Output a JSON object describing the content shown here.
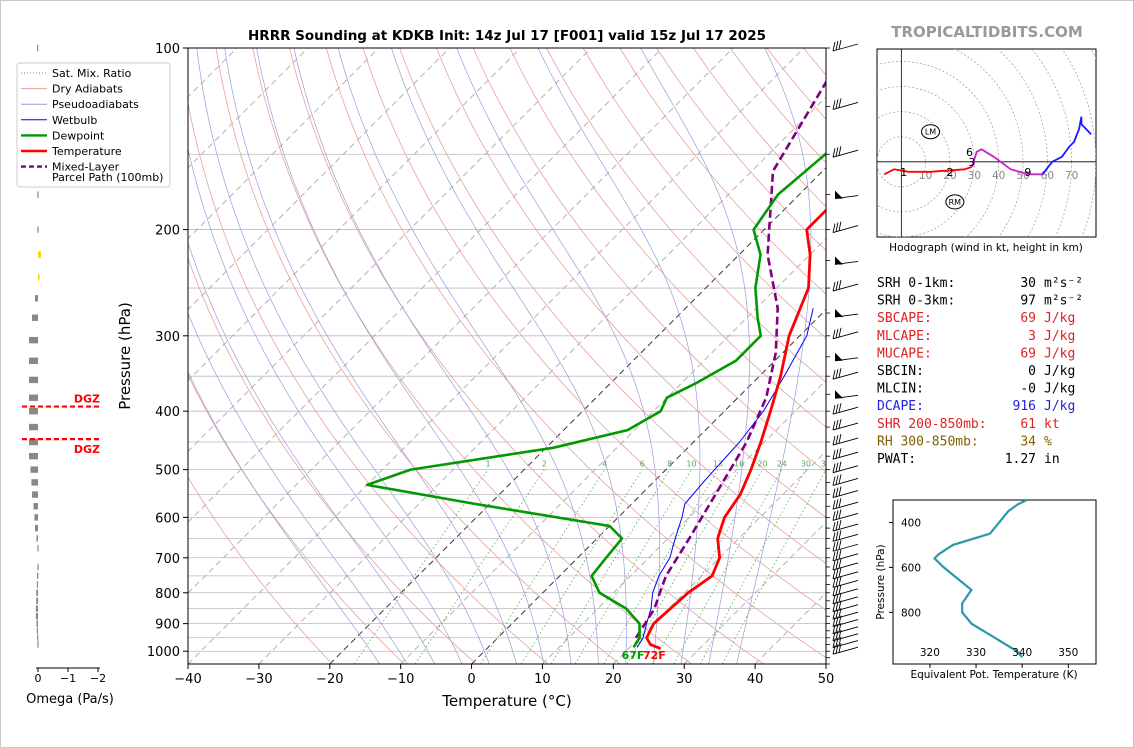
{
  "header": {
    "title": "HRRR Sounding at KDKB Init: 14z Jul 17 [F001] valid 15z Jul 17 2025",
    "brand": "TROPICALTIDBITS.COM"
  },
  "colors": {
    "temperature": "#ff0000",
    "dewpoint": "#009900",
    "wetbulb": "#0000ff",
    "parcel": "#800080",
    "dry_adiabat": "#e8a0a0",
    "moist_adiabat": "#9a9ae0",
    "mixing_ratio": "#58a858",
    "isotherm": "#808080",
    "theta_e": "#2e98a8",
    "red_text": "#dd2222",
    "blue_text": "#2222dd",
    "brown_text": "#806000"
  },
  "legend": {
    "items": [
      {
        "label": "Sat. Mix. Ratio",
        "color": "#58a858",
        "style": "dotted"
      },
      {
        "label": "Dry Adiabats",
        "color": "#e8a0a0",
        "style": "solid"
      },
      {
        "label": "Pseudoadiabats",
        "color": "#9a9ae0",
        "style": "solid"
      },
      {
        "label": "Wetbulb",
        "color": "#0000ff",
        "style": "solid"
      },
      {
        "label": "Dewpoint",
        "color": "#009900",
        "style": "thick"
      },
      {
        "label": "Temperature",
        "color": "#ff0000",
        "style": "thick"
      },
      {
        "label": "Mixed-Layer",
        "color": "#800080",
        "style": "dashed"
      }
    ],
    "parcel_sublabel": "Parcel Path (100mb)"
  },
  "omega": {
    "xlabel": "Omega (Pa/s)",
    "ticks": [
      "0",
      "−1",
      "−2"
    ],
    "dgz_label": "DGZ",
    "dgz_pressures": [
      393,
      445
    ],
    "bars": [
      {
        "p": 100,
        "v": 0.03
      },
      {
        "p": 150,
        "v": 0.02
      },
      {
        "p": 175,
        "v": 0.02
      },
      {
        "p": 200,
        "v": 0.02
      },
      {
        "p": 220,
        "v": -0.1
      },
      {
        "p": 240,
        "v": -0.05
      },
      {
        "p": 260,
        "v": 0.1
      },
      {
        "p": 280,
        "v": 0.2
      },
      {
        "p": 305,
        "v": 0.3
      },
      {
        "p": 330,
        "v": 0.3
      },
      {
        "p": 355,
        "v": 0.3
      },
      {
        "p": 380,
        "v": 0.3
      },
      {
        "p": 400,
        "v": 0.3
      },
      {
        "p": 425,
        "v": 0.3
      },
      {
        "p": 450,
        "v": 0.3
      },
      {
        "p": 475,
        "v": 0.3
      },
      {
        "p": 500,
        "v": 0.25
      },
      {
        "p": 525,
        "v": 0.22
      },
      {
        "p": 550,
        "v": 0.2
      },
      {
        "p": 575,
        "v": 0.15
      },
      {
        "p": 600,
        "v": 0.12
      },
      {
        "p": 625,
        "v": 0.1
      },
      {
        "p": 650,
        "v": 0.05
      },
      {
        "p": 675,
        "v": 0.02
      },
      {
        "p": 725,
        "v": 0.02
      },
      {
        "p": 750,
        "v": 0.03
      },
      {
        "p": 775,
        "v": 0.04
      },
      {
        "p": 800,
        "v": 0.06
      },
      {
        "p": 825,
        "v": 0.06
      },
      {
        "p": 850,
        "v": 0.07
      },
      {
        "p": 875,
        "v": 0.07
      },
      {
        "p": 900,
        "v": 0.05
      },
      {
        "p": 925,
        "v": 0.04
      },
      {
        "p": 950,
        "v": 0.03
      },
      {
        "p": 975,
        "v": 0.02
      }
    ]
  },
  "skewt": {
    "ylabel": "Pressure (hPa)",
    "xlabel": "Temperature (°C)",
    "x_ticks": [
      "−40",
      "−30",
      "−20",
      "−10",
      "0",
      "10",
      "20",
      "30",
      "40",
      "50"
    ],
    "y_ticks": [
      "100",
      "200",
      "300",
      "400",
      "500",
      "600",
      "700",
      "800",
      "900",
      "1000"
    ],
    "sfc_dewpoint_label": "67F",
    "sfc_temp_label": "72F",
    "mixing_ratio_labels": [
      "1",
      "2",
      "4",
      "6",
      "8",
      "10",
      "13",
      "16",
      "20",
      "24",
      "30",
      "36"
    ]
  },
  "chart_data": [
    {
      "type": "line",
      "title": "HRRR Sounding at KDKB Init: 14z Jul 17 [F001] valid 15z Jul 17 2025",
      "xlabel": "Temperature (°C)",
      "ylabel": "Pressure (hPa)",
      "xlim": [
        -40,
        50
      ],
      "ylim": [
        1050,
        100
      ],
      "yscale": "log",
      "skew": "45 degrees",
      "grid": true,
      "legend_position": "upper-left",
      "series": [
        {
          "name": "Temperature",
          "x": [
            24.5,
            22.5,
            21.0,
            20.0,
            20.5,
            21.5,
            20.0,
            17.0,
            15.0,
            14.0,
            12.0,
            9.5,
            6.5,
            3.0,
            -1.5,
            -5.5,
            -10.0,
            -14.0,
            -14.0,
            -13.5,
            -13.5,
            -13.5,
            -13.5,
            -1.5
          ],
          "y": [
            990,
            975,
            950,
            900,
            800,
            750,
            700,
            650,
            600,
            550,
            500,
            450,
            400,
            350,
            300,
            250,
            220,
            200,
            180,
            160,
            140,
            120,
            115,
            100
          ]
        },
        {
          "name": "Dewpoint",
          "x": [
            20.5,
            20.0,
            18.0,
            14.0,
            8.0,
            4.5,
            4.0,
            3.5,
            0.0,
            -22.0,
            -40.0,
            -36.0,
            -19.0,
            -11.0,
            -9.0,
            -10.0,
            -8.0,
            -5.5,
            -5.5,
            -8.5,
            -13.0,
            -17.0,
            -21.5,
            -23.0,
            -22.0,
            -23.0
          ],
          "y": [
            985,
            950,
            900,
            850,
            800,
            750,
            700,
            650,
            620,
            570,
            530,
            500,
            460,
            430,
            400,
            380,
            360,
            330,
            300,
            280,
            250,
            220,
            200,
            175,
            150,
            100
          ]
        },
        {
          "name": "Wetbulb",
          "x": [
            21.0,
            20.5,
            19.0,
            17.5,
            15.5,
            14.0,
            13.0,
            11.0,
            9.0,
            7.5,
            7.0,
            6.5,
            5.5,
            3.5,
            1.0,
            -2.0
          ],
          "y": [
            985,
            950,
            900,
            850,
            800,
            750,
            700,
            650,
            600,
            570,
            520,
            450,
            400,
            350,
            300,
            270
          ]
        },
        {
          "name": "Mixed-Layer Parcel Path (100mb)",
          "x": [
            19.5,
            18.0,
            16.5,
            15.0,
            13.0,
            10.5,
            7.5,
            4.0,
            -1.0,
            -7.0,
            -16.0,
            -27.0,
            -34.0
          ],
          "y": [
            950,
            850,
            800,
            750,
            650,
            550,
            450,
            380,
            320,
            270,
            220,
            160,
            100
          ]
        }
      ]
    },
    {
      "type": "line",
      "title": "Hodograph (wind in kt, height in km)",
      "xlim": [
        -10,
        80
      ],
      "ylim": [
        -30,
        45
      ],
      "ring_labels": [
        "10",
        "20",
        "30",
        "40",
        "50",
        "60",
        "70"
      ],
      "series": [
        {
          "name": "0-3 km",
          "x": [
            -7,
            -3,
            3,
            12,
            26,
            29
          ],
          "y": [
            -5,
            -3,
            -4,
            -4,
            -3,
            -2
          ]
        },
        {
          "name": "3-6 km",
          "x": [
            29,
            30,
            31,
            33,
            38,
            45,
            52,
            58
          ],
          "y": [
            -2,
            1,
            4,
            5,
            2,
            -3,
            -5,
            -5
          ]
        },
        {
          "name": "6-9 km",
          "x": [
            58,
            62,
            66,
            69,
            71,
            73,
            74,
            74,
            78
          ],
          "y": [
            -5,
            0,
            2,
            6,
            8,
            13,
            18,
            15,
            11
          ]
        }
      ],
      "markers": [
        {
          "label": "1",
          "x": 1,
          "y": -4
        },
        {
          "label": "2",
          "x": 20,
          "y": -4
        },
        {
          "label": "3",
          "x": 29,
          "y": 0
        },
        {
          "label": "6",
          "x": 28,
          "y": 4
        },
        {
          "label": "9",
          "x": 52,
          "y": -4
        },
        {
          "label": "LM",
          "x": 12,
          "y": 12
        },
        {
          "label": "RM",
          "x": 22,
          "y": -16
        }
      ]
    },
    {
      "type": "line",
      "xlabel": "Equivalent Pot. Temperature (K)",
      "ylabel": "Pressure (hPa)",
      "xlim": [
        312,
        356
      ],
      "ylim": [
        1030,
        300
      ],
      "x_ticks": [
        "320",
        "330",
        "340",
        "350"
      ],
      "y_ticks": [
        "400",
        "600",
        "800"
      ],
      "series": [
        {
          "name": "theta-e",
          "x": [
            340,
            339,
            337,
            333,
            329,
            327,
            327,
            329,
            326,
            323,
            321,
            322,
            325,
            333,
            335,
            337,
            339,
            341
          ],
          "y": [
            1000,
            975,
            950,
            900,
            850,
            800,
            760,
            700,
            650,
            600,
            560,
            540,
            500,
            450,
            400,
            350,
            320,
            300
          ]
        }
      ]
    }
  ],
  "stats": {
    "rows": [
      {
        "key": "SRH 0-1km:",
        "value": "30",
        "unit": "m²s⁻²",
        "color": "#000000"
      },
      {
        "key": "SRH 0-3km:",
        "value": "97",
        "unit": "m²s⁻²",
        "color": "#000000"
      },
      {
        "key": "SBCAPE:",
        "value": "69",
        "unit": "J/kg",
        "color": "#dd2222"
      },
      {
        "key": "MLCAPE:",
        "value": "3",
        "unit": "J/kg",
        "color": "#dd2222"
      },
      {
        "key": "MUCAPE:",
        "value": "69",
        "unit": "J/kg",
        "color": "#dd2222"
      },
      {
        "key": "SBCIN:",
        "value": "0",
        "unit": "J/kg",
        "color": "#000000"
      },
      {
        "key": "MLCIN:",
        "value": "-0",
        "unit": "J/kg",
        "color": "#000000"
      },
      {
        "key": "DCAPE:",
        "value": "916",
        "unit": "J/kg",
        "color": "#2222dd"
      },
      {
        "key": "SHR 200-850mb:",
        "value": "61",
        "unit": "kt",
        "color": "#dd2222"
      },
      {
        "key": "RH 300-850mb:",
        "value": "34",
        "unit": "%",
        "color": "#806000"
      },
      {
        "key": "PWAT:",
        "value": "1.27",
        "unit": "in",
        "color": "#000000"
      }
    ]
  },
  "hodograph": {
    "title": "Hodograph (wind in kt, height in km)"
  }
}
